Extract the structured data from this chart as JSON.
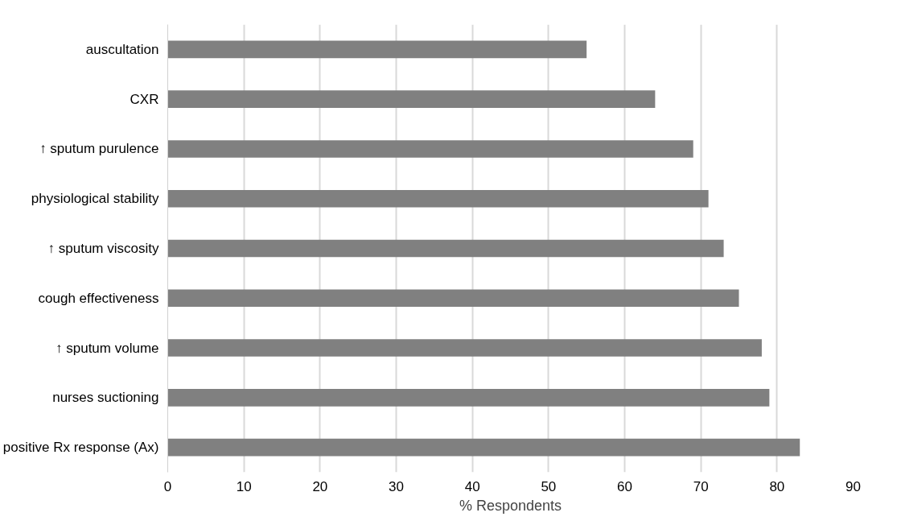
{
  "chart_data": {
    "type": "bar",
    "orientation": "horizontal",
    "xlabel": "% Respondents",
    "categories": [
      "auscultation",
      "CXR",
      "↑ sputum purulence",
      "physiological stability",
      "↑ sputum viscosity",
      "cough effectiveness",
      "↑ sputum volume",
      "nurses suctioning",
      "positive Rx response (Ax)"
    ],
    "values": [
      55,
      64,
      69,
      71,
      73,
      75,
      78,
      79,
      83
    ],
    "color": "#808080",
    "xlim": [
      0,
      90
    ],
    "xticks": [
      0,
      10,
      20,
      30,
      40,
      50,
      60,
      70,
      80,
      90
    ],
    "grid": "x"
  }
}
